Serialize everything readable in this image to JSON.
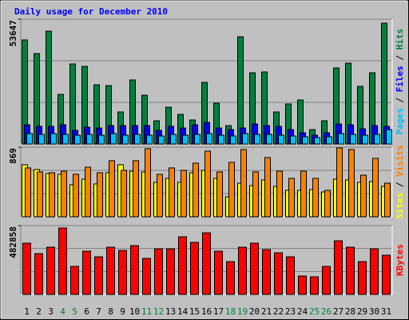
{
  "title": "Daily usage for December 2010",
  "chart_data": [
    {
      "type": "bar",
      "ylim": [
        0,
        53647
      ],
      "yticks": [
        53647
      ],
      "grid_divisions": 3,
      "legend_separator": " / ",
      "series": [
        {
          "name": "Pages",
          "color": "#00c0ff",
          "values": [
            4470,
            4130,
            4470,
            4130,
            3780,
            4130,
            3780,
            4470,
            3780,
            4130,
            3780,
            3440,
            4130,
            3780,
            4130,
            4470,
            3780,
            3440,
            4470,
            4130,
            4130,
            3780,
            3440,
            3100,
            2750,
            3100,
            4470,
            4130,
            3780,
            4130,
            6190
          ]
        },
        {
          "name": "Files",
          "color": "#0000ff",
          "values": [
            8260,
            7570,
            7570,
            8260,
            5850,
            7220,
            6880,
            7910,
            7910,
            7910,
            7910,
            5850,
            7570,
            6880,
            8260,
            9290,
            6880,
            6190,
            6880,
            8600,
            7910,
            7570,
            6190,
            4820,
            3780,
            4820,
            8600,
            8260,
            6540,
            7910,
            7570
          ]
        },
        {
          "name": "Hits",
          "color": "#008040",
          "values": [
            44720,
            38870,
            48500,
            21330,
            34400,
            33370,
            25460,
            25110,
            13760,
            27520,
            20980,
            9980,
            15820,
            12730,
            10320,
            26490,
            17540,
            7910,
            46100,
            30620,
            30960,
            13760,
            17200,
            18920,
            6190,
            9980,
            32680,
            34740,
            24770,
            30620,
            51940
          ]
        }
      ]
    },
    {
      "type": "bar",
      "ylim": [
        0,
        869
      ],
      "yticks": [
        869
      ],
      "grid_divisions": 3,
      "legend_separator": " / ",
      "series": [
        {
          "name": "Sites",
          "color": "#ffff00",
          "values": [
            650,
            590,
            540,
            530,
            400,
            470,
            410,
            550,
            650,
            570,
            560,
            430,
            480,
            430,
            550,
            580,
            480,
            250,
            420,
            390,
            460,
            380,
            330,
            330,
            340,
            310,
            470,
            460,
            430,
            440,
            380
          ]
        },
        {
          "name": "Visits",
          "color": "#ff8000",
          "values": [
            610,
            560,
            550,
            570,
            530,
            620,
            550,
            700,
            580,
            700,
            850,
            530,
            610,
            580,
            670,
            820,
            560,
            680,
            840,
            560,
            740,
            570,
            480,
            570,
            480,
            330,
            860,
            840,
            520,
            730,
            420
          ]
        }
      ]
    },
    {
      "type": "bar",
      "ylim": [
        0,
        482858
      ],
      "yticks": [
        482858
      ],
      "grid_divisions": 3,
      "categories": [
        "1",
        "2",
        "3",
        "4",
        "5",
        "6",
        "7",
        "8",
        "9",
        "10",
        "11",
        "12",
        "13",
        "14",
        "15",
        "16",
        "17",
        "18",
        "19",
        "20",
        "21",
        "22",
        "23",
        "24",
        "25",
        "26",
        "27",
        "28",
        "29",
        "30",
        "31"
      ],
      "category_colors": [
        "#000000",
        "#000000",
        "#000000",
        "#008040",
        "#008040",
        "#000000",
        "#000000",
        "#000000",
        "#000000",
        "#000000",
        "#008040",
        "#008040",
        "#000000",
        "#000000",
        "#000000",
        "#000000",
        "#000000",
        "#008040",
        "#008040",
        "#000000",
        "#000000",
        "#000000",
        "#000000",
        "#000000",
        "#008040",
        "#008040",
        "#000000",
        "#000000",
        "#000000",
        "#000000",
        "#000000"
      ],
      "series": [
        {
          "name": "KBytes",
          "color": "#ff0000",
          "values": [
            359360,
            286370,
            331290,
            466050,
            196530,
            303210,
            263910,
            331290,
            308830,
            342520,
            252680,
            320060,
            320060,
            404280,
            364980,
            432360,
            303210,
            230220,
            331290,
            359360,
            314440,
            291980,
            263910,
            129150,
            123530,
            196530,
            376210,
            331290,
            230220,
            320060,
            275140
          ]
        }
      ]
    }
  ]
}
